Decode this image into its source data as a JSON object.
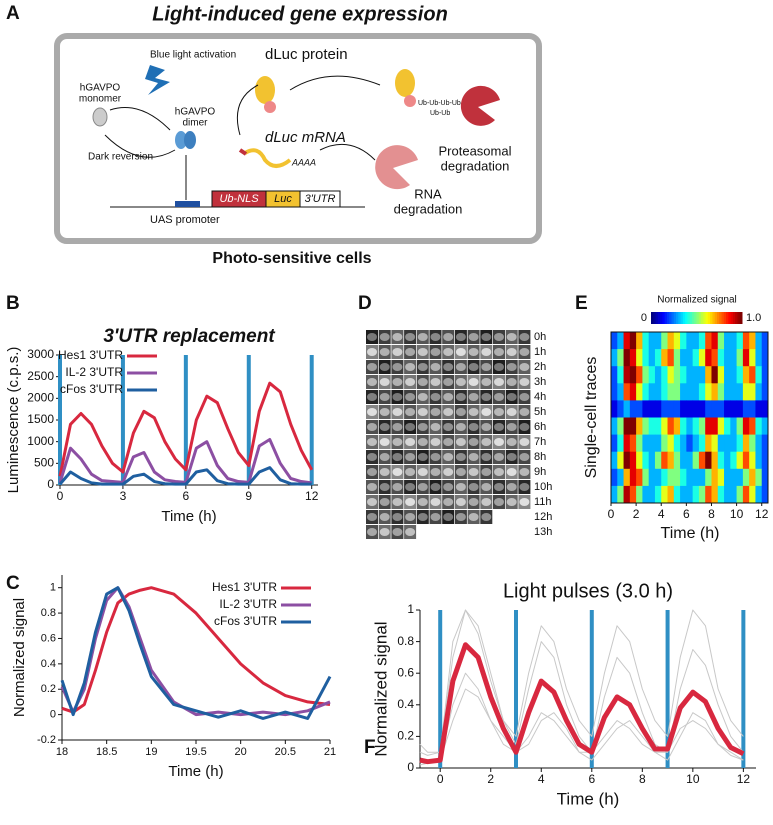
{
  "panel_a": {
    "panel": "A",
    "title": "Light-induced gene expression",
    "blue_light": "Blue light activation",
    "monomer": [
      "hGAVPO",
      "monomer"
    ],
    "dimer": [
      "hGAVPO",
      "dimer"
    ],
    "dark": "Dark reversion",
    "promoter": "UAS promoter",
    "ubnls": "Ub-NLS",
    "luc": "Luc",
    "utr": "3'UTR",
    "protein": "dLuc protein",
    "mrna": "dLuc mRNA",
    "polya": "AAAA",
    "ub1": "Ub-Ub-Ub-Ub",
    "ub2": "Ub-Ub",
    "proteasomal": [
      "Proteasomal",
      "degradation"
    ],
    "rna_deg": [
      "RNA",
      "degradation"
    ],
    "caption": "Photo-sensitive cells"
  },
  "panel_d": {
    "panel": "D",
    "labels": [
      "0h",
      "1h",
      "2h",
      "3h",
      "4h",
      "5h",
      "6h",
      "7h",
      "8h",
      "9h",
      "10h",
      "11h",
      "12h",
      "13h"
    ]
  },
  "chart_data": [
    {
      "type": "line",
      "panel": "B",
      "title": "3'UTR replacement",
      "xlabel": "Time (h)",
      "ylabel": "Luminescence (c.p.s.)",
      "xlim": [
        0,
        12.3
      ],
      "ylim": [
        0,
        3000
      ],
      "xticks": [
        0,
        3,
        6,
        9,
        12
      ],
      "yticks": [
        0,
        500,
        1000,
        1500,
        2000,
        2500,
        3000
      ],
      "pulses": [
        0,
        3,
        6,
        9,
        12
      ],
      "pulse_color": "#2f8fc4",
      "x": [
        0,
        0.5,
        1,
        1.5,
        2,
        2.5,
        3,
        3.5,
        4,
        4.5,
        5,
        5.5,
        6,
        6.5,
        7,
        7.5,
        8,
        8.5,
        9,
        9.5,
        10,
        10.5,
        11,
        11.5,
        12
      ],
      "series": [
        {
          "name": "Hes1 3'UTR",
          "color": "#d8283f",
          "values": [
            200,
            1400,
            1650,
            1400,
            900,
            500,
            300,
            1200,
            1700,
            1550,
            1000,
            600,
            350,
            1500,
            2050,
            1900,
            1300,
            750,
            450,
            1700,
            2350,
            2150,
            1400,
            800,
            350
          ]
        },
        {
          "name": "IL-2 3'UTR",
          "color": "#8c4fa3",
          "values": [
            50,
            850,
            600,
            250,
            100,
            80,
            60,
            650,
            750,
            300,
            120,
            80,
            60,
            850,
            1000,
            450,
            150,
            80,
            60,
            900,
            1050,
            500,
            150,
            80,
            50
          ]
        },
        {
          "name": "cFos 3'UTR",
          "color": "#1f5fa0",
          "values": [
            20,
            300,
            150,
            50,
            20,
            20,
            20,
            200,
            250,
            80,
            30,
            20,
            20,
            300,
            350,
            100,
            30,
            20,
            20,
            300,
            400,
            120,
            30,
            20,
            20
          ]
        }
      ]
    },
    {
      "type": "line",
      "panel": "C",
      "xlabel": "Time (h)",
      "ylabel": "Normalized signal",
      "xlim": [
        18,
        21
      ],
      "ylim": [
        -0.2,
        1.1
      ],
      "xticks": [
        18,
        18.5,
        19,
        19.5,
        20,
        20.5,
        21
      ],
      "yticks": [
        -0.2,
        0,
        0.2,
        0.4,
        0.6,
        0.8,
        1
      ],
      "x": [
        18,
        18.125,
        18.25,
        18.375,
        18.5,
        18.625,
        18.75,
        18.875,
        19,
        19.25,
        19.5,
        19.75,
        20,
        20.25,
        20.5,
        20.75,
        21
      ],
      "series": [
        {
          "name": "Hes1 3'UTR",
          "color": "#d8283f",
          "values": [
            0.05,
            0.02,
            0.08,
            0.35,
            0.65,
            0.88,
            0.95,
            0.98,
            1,
            0.95,
            0.8,
            0.6,
            0.4,
            0.25,
            0.15,
            0.1,
            0.08
          ]
        },
        {
          "name": "IL-2 3'UTR",
          "color": "#8c4fa3",
          "values": [
            0.22,
            0.02,
            0.2,
            0.6,
            0.9,
            1,
            0.85,
            0.6,
            0.35,
            0.1,
            0,
            0.02,
            0,
            0.02,
            0,
            0.03,
            0.1
          ]
        },
        {
          "name": "cFos 3'UTR",
          "color": "#1f5fa0",
          "values": [
            0.27,
            0,
            0.25,
            0.65,
            0.95,
            1,
            0.82,
            0.55,
            0.3,
            0.08,
            0.03,
            -0.02,
            0.03,
            -0.03,
            0.02,
            -0.03,
            0.3
          ]
        }
      ]
    },
    {
      "type": "heatmap",
      "panel": "E",
      "colorbar_title": "Normalized signal",
      "cbticks": [
        0,
        {
          "value": 1,
          "label": "1.0"
        }
      ],
      "xlabel": "Time (h)",
      "ylabel": "Single-cell traces",
      "xlim": [
        0,
        12.5
      ],
      "xticks": [
        0,
        2,
        4,
        6,
        8,
        10,
        12
      ],
      "matrix": [
        [
          0.2,
          0.3,
          0.9,
          1,
          0.7,
          0.4,
          0.3,
          0.3,
          0.5,
          0.7,
          0.6,
          0.4,
          0.3,
          0.3,
          0.4,
          0.8,
          0.9,
          0.5,
          0.3,
          0.3,
          0.4,
          0.8,
          0.7,
          0.3,
          0.2
        ],
        [
          0.3,
          0.5,
          1,
          0.9,
          0.6,
          0.4,
          0.3,
          0.4,
          0.7,
          0.8,
          0.5,
          0.3,
          0.3,
          0.4,
          0.6,
          0.9,
          0.8,
          0.4,
          0.3,
          0.3,
          0.5,
          0.9,
          0.6,
          0.3,
          0.2
        ],
        [
          0.2,
          0.4,
          0.95,
          1,
          0.8,
          0.5,
          0.4,
          0.3,
          0.4,
          0.6,
          0.5,
          0.4,
          0.3,
          0.3,
          0.3,
          0.7,
          1,
          0.6,
          0.3,
          0.3,
          0.4,
          0.7,
          0.8,
          0.4,
          0.2
        ],
        [
          0.2,
          0.3,
          0.8,
          0.9,
          0.6,
          0.4,
          0.3,
          0.3,
          0.4,
          0.5,
          0.5,
          0.3,
          0.3,
          0.3,
          0.4,
          0.6,
          0.7,
          0.5,
          0.3,
          0.3,
          0.3,
          0.6,
          0.6,
          0.3,
          0.2
        ],
        [
          0.1,
          0.2,
          0.3,
          0.2,
          0.2,
          0.1,
          0.1,
          0.1,
          0.2,
          0.2,
          0.2,
          0.1,
          0.1,
          0.1,
          0.1,
          0.2,
          0.2,
          0.2,
          0.1,
          0.1,
          0.1,
          0.2,
          0.2,
          0.1,
          0.1
        ],
        [
          0.3,
          0.5,
          1,
          1,
          0.7,
          0.5,
          0.4,
          0.4,
          0.6,
          0.8,
          0.7,
          0.4,
          0.3,
          0.4,
          0.5,
          0.9,
          0.9,
          0.6,
          0.4,
          0.3,
          0.5,
          0.9,
          0.8,
          0.4,
          0.3
        ],
        [
          0.2,
          0.4,
          0.9,
          0.8,
          0.5,
          0.3,
          0.3,
          0.3,
          0.5,
          0.6,
          0.4,
          0.3,
          0.2,
          0.3,
          0.4,
          0.7,
          0.6,
          0.3,
          0.3,
          0.3,
          0.4,
          0.7,
          0.5,
          0.3,
          0.2
        ],
        [
          0.3,
          0.6,
          1,
          0.9,
          0.6,
          0.4,
          0.3,
          0.5,
          0.8,
          0.7,
          0.5,
          0.3,
          0.3,
          0.5,
          0.8,
          1,
          0.7,
          0.4,
          0.3,
          0.4,
          0.6,
          0.8,
          0.6,
          0.3,
          0.2
        ],
        [
          0.2,
          0.3,
          0.7,
          0.9,
          0.8,
          0.5,
          0.3,
          0.3,
          0.4,
          0.5,
          0.5,
          0.4,
          0.3,
          0.3,
          0.3,
          0.5,
          0.7,
          0.6,
          0.3,
          0.3,
          0.3,
          0.5,
          0.7,
          0.5,
          0.2
        ],
        [
          0.3,
          0.5,
          0.95,
          0.8,
          0.5,
          0.3,
          0.3,
          0.4,
          0.6,
          0.7,
          0.4,
          0.3,
          0.3,
          0.4,
          0.5,
          0.8,
          0.7,
          0.4,
          0.3,
          0.3,
          0.5,
          0.8,
          0.6,
          0.3,
          0.2
        ]
      ]
    },
    {
      "type": "line",
      "panel": "F",
      "title": "Light pulses (3.0 h)",
      "xlabel": "Time (h)",
      "ylabel": "Normalized signal",
      "xlim": [
        -0.8,
        12.5
      ],
      "ylim": [
        0,
        1
      ],
      "xticks": [
        0,
        2,
        4,
        6,
        8,
        10,
        12
      ],
      "yticks": [
        0,
        0.2,
        0.4,
        0.6,
        0.8,
        1
      ],
      "pulses": [
        0,
        3,
        6,
        9,
        12
      ],
      "pulse_color": "#2f8fc4",
      "x": [
        -0.8,
        -0.5,
        0,
        0.5,
        1,
        1.5,
        2,
        2.5,
        3,
        3.5,
        4,
        4.5,
        5,
        5.5,
        6,
        6.5,
        7,
        7.5,
        8,
        8.5,
        9,
        9.5,
        10,
        10.5,
        11,
        11.5,
        12
      ],
      "series": [
        {
          "color": "#c8c8c8",
          "values": [
            0.1,
            0.08,
            0.1,
            0.7,
            1,
            0.9,
            0.6,
            0.3,
            0.2,
            0.6,
            0.9,
            0.8,
            0.5,
            0.3,
            0.2,
            0.6,
            0.9,
            0.8,
            0.5,
            0.3,
            0.2,
            0.7,
            1,
            0.9,
            0.5,
            0.3,
            0.2
          ]
        },
        {
          "color": "#c8c8c8",
          "values": [
            0.05,
            0.05,
            0.05,
            0.4,
            0.6,
            0.5,
            0.3,
            0.15,
            0.1,
            0.2,
            0.35,
            0.3,
            0.2,
            0.1,
            0.1,
            0.2,
            0.3,
            0.25,
            0.15,
            0.1,
            0.1,
            0.25,
            0.3,
            0.25,
            0.15,
            0.1,
            0.05
          ]
        },
        {
          "color": "#c8c8c8",
          "values": [
            0.15,
            0.1,
            0.1,
            0.8,
            1,
            0.85,
            0.55,
            0.3,
            0.15,
            0.5,
            0.8,
            0.7,
            0.4,
            0.2,
            0.1,
            0.45,
            0.7,
            0.6,
            0.35,
            0.15,
            0.1,
            0.5,
            0.75,
            0.65,
            0.4,
            0.2,
            0.1
          ]
        },
        {
          "color": "#c8c8c8",
          "values": [
            0.02,
            0.03,
            0.05,
            0.3,
            0.5,
            0.45,
            0.3,
            0.2,
            0.1,
            0.15,
            0.3,
            0.35,
            0.25,
            0.1,
            0.05,
            0.15,
            0.25,
            0.3,
            0.2,
            0.1,
            0.05,
            0.2,
            0.35,
            0.3,
            0.15,
            0.08,
            0.05
          ]
        },
        {
          "color": "#d8283f",
          "values": [
            0.05,
            0.04,
            0.05,
            0.55,
            0.78,
            0.7,
            0.45,
            0.25,
            0.1,
            0.35,
            0.55,
            0.48,
            0.3,
            0.15,
            0.1,
            0.32,
            0.45,
            0.4,
            0.25,
            0.12,
            0.12,
            0.38,
            0.48,
            0.42,
            0.25,
            0.13,
            0.09
          ]
        }
      ]
    }
  ]
}
